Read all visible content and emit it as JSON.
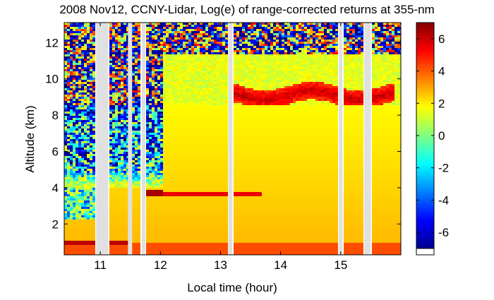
{
  "chart_data": {
    "type": "heatmap",
    "title": "2008 Nov12, CCNY-Lidar, Log(e) of range-corrected returns at 355-nm",
    "xlabel": "Local time (hour)",
    "ylabel": "Altitude (km)",
    "xlim": [
      10.4,
      16.0
    ],
    "ylim": [
      0.3,
      13.1
    ],
    "x_ticks": [
      11,
      12,
      13,
      14,
      15
    ],
    "y_ticks": [
      2,
      4,
      6,
      8,
      10,
      12
    ],
    "colorbar": {
      "ticks": [
        6,
        4,
        2,
        0,
        -2,
        -4,
        -6
      ],
      "range": [
        -7,
        7
      ],
      "colormap": "jet",
      "colors": [
        "#00008f",
        "#0000ff",
        "#0080ff",
        "#00ffff",
        "#80ff80",
        "#ffff00",
        "#ff8000",
        "#ff0000",
        "#800000"
      ]
    },
    "data_gaps_hours": [
      [
        10.93,
        11.13
      ],
      [
        11.46,
        11.53
      ],
      [
        11.69,
        11.75
      ],
      [
        13.13,
        13.2
      ],
      [
        14.97,
        15.03
      ],
      [
        15.39,
        15.5
      ]
    ],
    "features": [
      {
        "name": "boundary layer",
        "altitude_km": [
          0.3,
          1.0
        ],
        "value": 4
      },
      {
        "name": "elevated aerosol layer",
        "altitude_km": [
          1.0,
          8.5
        ],
        "value": 2.8
      },
      {
        "name": "cirrus layer",
        "time_hour": [
          13.2,
          15.9
        ],
        "altitude_km": [
          8.2,
          9.8
        ],
        "value": 4.5
      },
      {
        "name": "thin layer",
        "time_hour": [
          11.8,
          13.7
        ],
        "altitude_km": [
          3.4,
          3.8
        ],
        "value": 5
      }
    ]
  }
}
